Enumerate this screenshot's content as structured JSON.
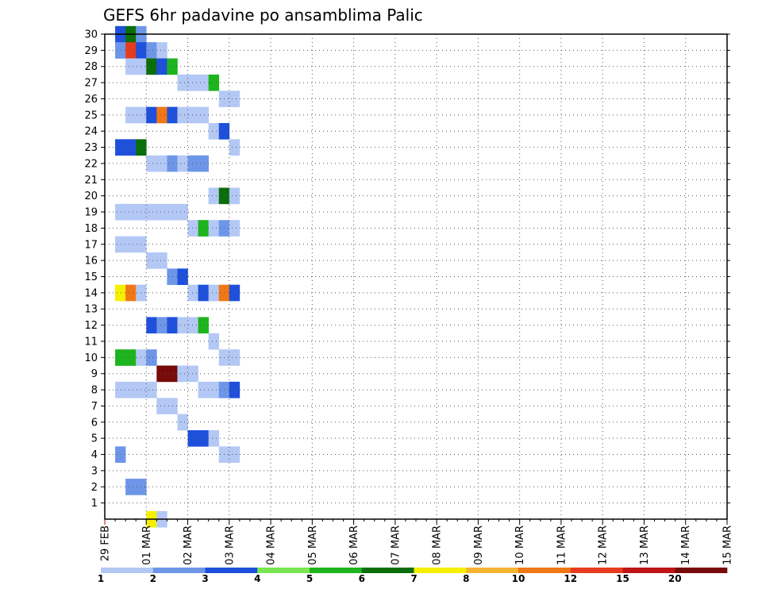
{
  "chart_data": {
    "type": "heatmap",
    "title": "GEFS 6hr padavine po ansamblima Palic",
    "x_tick_labels": [
      "29 FEB",
      "01 MAR",
      "02 MAR",
      "03 MAR",
      "04 MAR",
      "05 MAR",
      "06 MAR",
      "07 MAR",
      "08 MAR",
      "09 MAR",
      "10 MAR",
      "11 MAR",
      "12 MAR",
      "13 MAR",
      "14 MAR",
      "15 MAR"
    ],
    "y_tick_labels": [
      "1",
      "2",
      "3",
      "4",
      "5",
      "6",
      "7",
      "8",
      "9",
      "10",
      "11",
      "12",
      "13",
      "14",
      "15",
      "16",
      "17",
      "18",
      "19",
      "20",
      "21",
      "22",
      "23",
      "24",
      "25",
      "26",
      "27",
      "28",
      "29",
      "30"
    ],
    "xlim_days": [
      0,
      15
    ],
    "ylim": [
      0,
      30
    ],
    "grid": true,
    "colorbar": {
      "labels": [
        "1",
        "2",
        "3",
        "4",
        "5",
        "6",
        "7",
        "8",
        "10",
        "12",
        "15",
        "20"
      ],
      "colors": [
        "#b4c8f5",
        "#6e96e8",
        "#1e50dc",
        "#78e650",
        "#1eb41e",
        "#0a6e0a",
        "#f5f000",
        "#f5b432",
        "#f07814",
        "#e63c1e",
        "#be1414",
        "#780a0a"
      ]
    },
    "cells": [
      {
        "t": 1,
        "m": 30,
        "c": 3
      },
      {
        "t": 2,
        "m": 30,
        "c": 6
      },
      {
        "t": 3,
        "m": 30,
        "c": 2
      },
      {
        "t": 1,
        "m": 29,
        "c": 2
      },
      {
        "t": 2,
        "m": 29,
        "c": 10
      },
      {
        "t": 3,
        "m": 29,
        "c": 3
      },
      {
        "t": 4,
        "m": 29,
        "c": 2
      },
      {
        "t": 5,
        "m": 29,
        "c": 1
      },
      {
        "t": 2,
        "m": 28,
        "c": 1
      },
      {
        "t": 3,
        "m": 28,
        "c": 1
      },
      {
        "t": 4,
        "m": 28,
        "c": 6
      },
      {
        "t": 5,
        "m": 28,
        "c": 3
      },
      {
        "t": 6,
        "m": 28,
        "c": 5
      },
      {
        "t": 7,
        "m": 27,
        "c": 1
      },
      {
        "t": 8,
        "m": 27,
        "c": 1
      },
      {
        "t": 9,
        "m": 27,
        "c": 1
      },
      {
        "t": 10,
        "m": 27,
        "c": 5
      },
      {
        "t": 11,
        "m": 26,
        "c": 1
      },
      {
        "t": 12,
        "m": 26,
        "c": 1
      },
      {
        "t": 2,
        "m": 25,
        "c": 1
      },
      {
        "t": 3,
        "m": 25,
        "c": 1
      },
      {
        "t": 4,
        "m": 25,
        "c": 3
      },
      {
        "t": 5,
        "m": 25,
        "c": 9
      },
      {
        "t": 6,
        "m": 25,
        "c": 3
      },
      {
        "t": 7,
        "m": 25,
        "c": 1
      },
      {
        "t": 8,
        "m": 25,
        "c": 1
      },
      {
        "t": 9,
        "m": 25,
        "c": 1
      },
      {
        "t": 10,
        "m": 24,
        "c": 1
      },
      {
        "t": 11,
        "m": 24,
        "c": 3
      },
      {
        "t": 12,
        "m": 23,
        "c": 1
      },
      {
        "t": 1,
        "m": 23,
        "c": 3
      },
      {
        "t": 2,
        "m": 23,
        "c": 3
      },
      {
        "t": 3,
        "m": 23,
        "c": 6
      },
      {
        "t": 4,
        "m": 22,
        "c": 1
      },
      {
        "t": 5,
        "m": 22,
        "c": 1
      },
      {
        "t": 6,
        "m": 22,
        "c": 2
      },
      {
        "t": 7,
        "m": 22,
        "c": 1
      },
      {
        "t": 8,
        "m": 22,
        "c": 2
      },
      {
        "t": 9,
        "m": 22,
        "c": 2
      },
      {
        "t": 10,
        "m": 20,
        "c": 1
      },
      {
        "t": 11,
        "m": 20,
        "c": 6
      },
      {
        "t": 12,
        "m": 20,
        "c": 1
      },
      {
        "t": 1,
        "m": 19,
        "c": 1
      },
      {
        "t": 2,
        "m": 19,
        "c": 1
      },
      {
        "t": 3,
        "m": 19,
        "c": 1
      },
      {
        "t": 4,
        "m": 19,
        "c": 1
      },
      {
        "t": 5,
        "m": 19,
        "c": 1
      },
      {
        "t": 6,
        "m": 19,
        "c": 1
      },
      {
        "t": 7,
        "m": 19,
        "c": 1
      },
      {
        "t": 8,
        "m": 18,
        "c": 1
      },
      {
        "t": 9,
        "m": 18,
        "c": 5
      },
      {
        "t": 10,
        "m": 18,
        "c": 1
      },
      {
        "t": 11,
        "m": 18,
        "c": 2
      },
      {
        "t": 12,
        "m": 18,
        "c": 1
      },
      {
        "t": 1,
        "m": 17,
        "c": 1
      },
      {
        "t": 2,
        "m": 17,
        "c": 1
      },
      {
        "t": 3,
        "m": 17,
        "c": 1
      },
      {
        "t": 4,
        "m": 16,
        "c": 1
      },
      {
        "t": 5,
        "m": 16,
        "c": 1
      },
      {
        "t": 6,
        "m": 15,
        "c": 2
      },
      {
        "t": 7,
        "m": 15,
        "c": 3
      },
      {
        "t": 8,
        "m": 14,
        "c": 1
      },
      {
        "t": 9,
        "m": 14,
        "c": 3
      },
      {
        "t": 10,
        "m": 14,
        "c": 1
      },
      {
        "t": 11,
        "m": 14,
        "c": 9
      },
      {
        "t": 12,
        "m": 14,
        "c": 3
      },
      {
        "t": 1,
        "m": 14,
        "c": 7
      },
      {
        "t": 2,
        "m": 14,
        "c": 9
      },
      {
        "t": 3,
        "m": 14,
        "c": 1
      },
      {
        "t": 4,
        "m": 12,
        "c": 3
      },
      {
        "t": 5,
        "m": 12,
        "c": 2
      },
      {
        "t": 6,
        "m": 12,
        "c": 3
      },
      {
        "t": 7,
        "m": 12,
        "c": 1
      },
      {
        "t": 8,
        "m": 12,
        "c": 1
      },
      {
        "t": 9,
        "m": 12,
        "c": 5
      },
      {
        "t": 10,
        "m": 11,
        "c": 1
      },
      {
        "t": 11,
        "m": 10,
        "c": 1
      },
      {
        "t": 12,
        "m": 10,
        "c": 1
      },
      {
        "t": 1,
        "m": 10,
        "c": 5
      },
      {
        "t": 2,
        "m": 10,
        "c": 5
      },
      {
        "t": 3,
        "m": 10,
        "c": 1
      },
      {
        "t": 4,
        "m": 10,
        "c": 2
      },
      {
        "t": 5,
        "m": 9,
        "c": 12
      },
      {
        "t": 6,
        "m": 9,
        "c": 12
      },
      {
        "t": 7,
        "m": 9,
        "c": 1
      },
      {
        "t": 8,
        "m": 9,
        "c": 1
      },
      {
        "t": 9,
        "m": 8,
        "c": 1
      },
      {
        "t": 10,
        "m": 8,
        "c": 1
      },
      {
        "t": 11,
        "m": 8,
        "c": 2
      },
      {
        "t": 12,
        "m": 8,
        "c": 3
      },
      {
        "t": 1,
        "m": 8,
        "c": 1
      },
      {
        "t": 2,
        "m": 8,
        "c": 1
      },
      {
        "t": 3,
        "m": 8,
        "c": 1
      },
      {
        "t": 4,
        "m": 8,
        "c": 1
      },
      {
        "t": 5,
        "m": 7,
        "c": 1
      },
      {
        "t": 6,
        "m": 7,
        "c": 1
      },
      {
        "t": 7,
        "m": 6,
        "c": 1
      },
      {
        "t": 8,
        "m": 5,
        "c": 3
      },
      {
        "t": 9,
        "m": 5,
        "c": 3
      },
      {
        "t": 10,
        "m": 5,
        "c": 1
      },
      {
        "t": 11,
        "m": 4,
        "c": 1
      },
      {
        "t": 12,
        "m": 4,
        "c": 1
      },
      {
        "t": 1,
        "m": 4,
        "c": 2
      },
      {
        "t": 2,
        "m": 2,
        "c": 2
      },
      {
        "t": 3,
        "m": 2,
        "c": 2
      },
      {
        "t": 4,
        "m": 0,
        "c": 7
      },
      {
        "t": 5,
        "m": 0,
        "c": 1
      }
    ]
  }
}
